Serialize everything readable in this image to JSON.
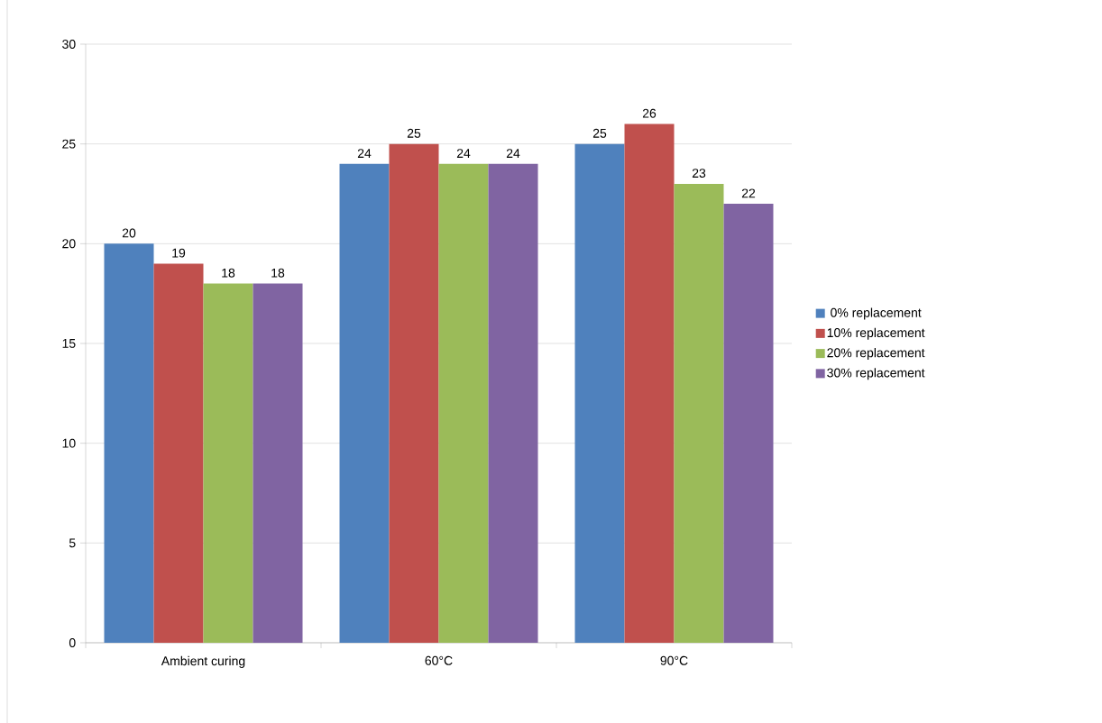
{
  "chart_data": {
    "type": "bar",
    "categories": [
      "Ambient curing",
      "60°C",
      "90°C"
    ],
    "series": [
      {
        "name": "0% replacement",
        "color": "#4f81bd",
        "values": [
          20,
          24,
          25
        ]
      },
      {
        "name": "10% replacement",
        "color": "#c0504d",
        "values": [
          19,
          25,
          26
        ]
      },
      {
        "name": "20% replacement",
        "color": "#9bbb59",
        "values": [
          18,
          24,
          23
        ]
      },
      {
        "name": "30% replacement",
        "color": "#8064a2",
        "values": [
          18,
          24,
          22
        ]
      }
    ],
    "ylim": [
      0,
      30
    ],
    "yticks": [
      0,
      5,
      10,
      15,
      20,
      25,
      30
    ],
    "grid": "y",
    "legend": "right",
    "data_labels": true
  }
}
